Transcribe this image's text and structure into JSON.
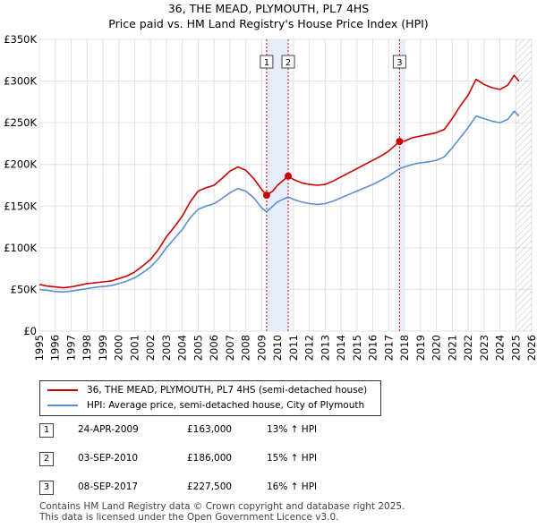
{
  "chart_data": {
    "type": "line",
    "title": "36, THE MEAD, PLYMOUTH, PL7 4HS",
    "subtitle": "Price paid vs. HM Land Registry's House Price Index (HPI)",
    "xlabel": "",
    "ylabel": "",
    "xlim": [
      1995,
      2026
    ],
    "ylim": [
      0,
      350000
    ],
    "x_ticks": [
      "1995",
      "1996",
      "1997",
      "1998",
      "1999",
      "2000",
      "2001",
      "2002",
      "2003",
      "2004",
      "2005",
      "2006",
      "2007",
      "2008",
      "2009",
      "2010",
      "2011",
      "2012",
      "2013",
      "2014",
      "2015",
      "2016",
      "2017",
      "2018",
      "2019",
      "2020",
      "2021",
      "2022",
      "2023",
      "2024",
      "2025",
      "2026"
    ],
    "y_ticks": [
      {
        "value": 0,
        "label": "£0"
      },
      {
        "value": 50000,
        "label": "£50K"
      },
      {
        "value": 100000,
        "label": "£100K"
      },
      {
        "value": 150000,
        "label": "£150K"
      },
      {
        "value": 200000,
        "label": "£200K"
      },
      {
        "value": 250000,
        "label": "£250K"
      },
      {
        "value": 300000,
        "label": "£300K"
      },
      {
        "value": 350000,
        "label": "£350K"
      }
    ],
    "series": [
      {
        "name": "36, THE MEAD, PLYMOUTH, PL7 4HS (semi-detached house)",
        "color": "#cc0000",
        "points": [
          [
            1995.0,
            56000
          ],
          [
            1995.5,
            54000
          ],
          [
            1996.0,
            53000
          ],
          [
            1996.5,
            52000
          ],
          [
            1997.0,
            53000
          ],
          [
            1997.5,
            55000
          ],
          [
            1998.0,
            57000
          ],
          [
            1998.5,
            58000
          ],
          [
            1999.0,
            59000
          ],
          [
            1999.5,
            60000
          ],
          [
            2000.0,
            63000
          ],
          [
            2000.5,
            66000
          ],
          [
            2001.0,
            71000
          ],
          [
            2001.5,
            78000
          ],
          [
            2002.0,
            86000
          ],
          [
            2002.5,
            98000
          ],
          [
            2003.0,
            113000
          ],
          [
            2003.5,
            125000
          ],
          [
            2004.0,
            138000
          ],
          [
            2004.5,
            155000
          ],
          [
            2005.0,
            168000
          ],
          [
            2005.5,
            172000
          ],
          [
            2006.0,
            175000
          ],
          [
            2006.5,
            183000
          ],
          [
            2007.0,
            192000
          ],
          [
            2007.5,
            197000
          ],
          [
            2008.0,
            193000
          ],
          [
            2008.5,
            183000
          ],
          [
            2009.0,
            170000
          ],
          [
            2009.3,
            163000
          ],
          [
            2009.7,
            168000
          ],
          [
            2010.0,
            175000
          ],
          [
            2010.67,
            186000
          ],
          [
            2011.0,
            182000
          ],
          [
            2011.5,
            178000
          ],
          [
            2012.0,
            176000
          ],
          [
            2012.5,
            175000
          ],
          [
            2013.0,
            176000
          ],
          [
            2013.5,
            180000
          ],
          [
            2014.0,
            185000
          ],
          [
            2014.5,
            190000
          ],
          [
            2015.0,
            195000
          ],
          [
            2015.5,
            200000
          ],
          [
            2016.0,
            205000
          ],
          [
            2016.5,
            210000
          ],
          [
            2017.0,
            216000
          ],
          [
            2017.68,
            227500
          ],
          [
            2018.0,
            228000
          ],
          [
            2018.5,
            232000
          ],
          [
            2019.0,
            234000
          ],
          [
            2019.5,
            236000
          ],
          [
            2020.0,
            238000
          ],
          [
            2020.5,
            242000
          ],
          [
            2021.0,
            255000
          ],
          [
            2021.5,
            270000
          ],
          [
            2022.0,
            283000
          ],
          [
            2022.5,
            302000
          ],
          [
            2023.0,
            296000
          ],
          [
            2023.5,
            292000
          ],
          [
            2024.0,
            290000
          ],
          [
            2024.5,
            295000
          ],
          [
            2024.9,
            307000
          ],
          [
            2025.2,
            300000
          ]
        ]
      },
      {
        "name": "HPI: Average price, semi-detached house, City of Plymouth",
        "color": "#5b8fd0",
        "points": [
          [
            1995.0,
            50000
          ],
          [
            1995.5,
            49000
          ],
          [
            1996.0,
            47500
          ],
          [
            1996.5,
            47000
          ],
          [
            1997.0,
            48000
          ],
          [
            1997.5,
            49500
          ],
          [
            1998.0,
            51000
          ],
          [
            1998.5,
            52500
          ],
          [
            1999.0,
            53500
          ],
          [
            1999.5,
            54500
          ],
          [
            2000.0,
            57000
          ],
          [
            2000.5,
            60000
          ],
          [
            2001.0,
            64000
          ],
          [
            2001.5,
            70000
          ],
          [
            2002.0,
            77000
          ],
          [
            2002.5,
            87000
          ],
          [
            2003.0,
            100000
          ],
          [
            2003.5,
            111000
          ],
          [
            2004.0,
            122000
          ],
          [
            2004.5,
            136000
          ],
          [
            2005.0,
            146000
          ],
          [
            2005.5,
            150000
          ],
          [
            2006.0,
            153000
          ],
          [
            2006.5,
            159000
          ],
          [
            2007.0,
            166000
          ],
          [
            2007.5,
            171000
          ],
          [
            2008.0,
            168000
          ],
          [
            2008.5,
            160000
          ],
          [
            2009.0,
            148000
          ],
          [
            2009.3,
            143000
          ],
          [
            2009.7,
            150000
          ],
          [
            2010.0,
            155000
          ],
          [
            2010.67,
            161000
          ],
          [
            2011.0,
            158000
          ],
          [
            2011.5,
            155000
          ],
          [
            2012.0,
            153000
          ],
          [
            2012.5,
            152000
          ],
          [
            2013.0,
            153000
          ],
          [
            2013.5,
            156000
          ],
          [
            2014.0,
            160000
          ],
          [
            2014.5,
            164000
          ],
          [
            2015.0,
            168000
          ],
          [
            2015.5,
            172000
          ],
          [
            2016.0,
            176000
          ],
          [
            2016.5,
            181000
          ],
          [
            2017.0,
            186000
          ],
          [
            2017.68,
            195000
          ],
          [
            2018.0,
            197000
          ],
          [
            2018.5,
            200000
          ],
          [
            2019.0,
            202000
          ],
          [
            2019.5,
            203000
          ],
          [
            2020.0,
            205000
          ],
          [
            2020.5,
            209000
          ],
          [
            2021.0,
            220000
          ],
          [
            2021.5,
            232000
          ],
          [
            2022.0,
            244000
          ],
          [
            2022.5,
            258000
          ],
          [
            2023.0,
            255000
          ],
          [
            2023.5,
            252000
          ],
          [
            2024.0,
            250000
          ],
          [
            2024.5,
            254000
          ],
          [
            2024.9,
            264000
          ],
          [
            2025.2,
            258000
          ]
        ]
      }
    ],
    "sales": [
      {
        "num": "1",
        "x": 2009.31,
        "y": 163000,
        "date": "24-APR-2009",
        "price": "£163,000",
        "hpi": "13% ↑ HPI"
      },
      {
        "num": "2",
        "x": 2010.67,
        "y": 186000,
        "date": "03-SEP-2010",
        "price": "£186,000",
        "hpi": "15% ↑ HPI"
      },
      {
        "num": "3",
        "x": 2017.68,
        "y": 227500,
        "date": "08-SEP-2017",
        "price": "£227,500",
        "hpi": "16% ↑ HPI"
      }
    ],
    "shaded_ranges": [
      [
        2009.31,
        2010.67
      ],
      [
        2017.68,
        2018.0
      ]
    ],
    "hatched_range": [
      2025.0,
      2026.0
    ]
  },
  "legend": {
    "property_label": "36, THE MEAD, PLYMOUTH, PL7 4HS (semi-detached house)",
    "hpi_label": "HPI: Average price, semi-detached house, City of Plymouth"
  },
  "footer": {
    "line1": "Contains HM Land Registry data © Crown copyright and database right 2025.",
    "line2": "This data is licensed under the Open Government Licence v3.0."
  },
  "colors": {
    "property": "#cc0000",
    "hpi": "#5b8fd0",
    "shade": "#e6ecf8",
    "grid": "#e0e0e0"
  }
}
